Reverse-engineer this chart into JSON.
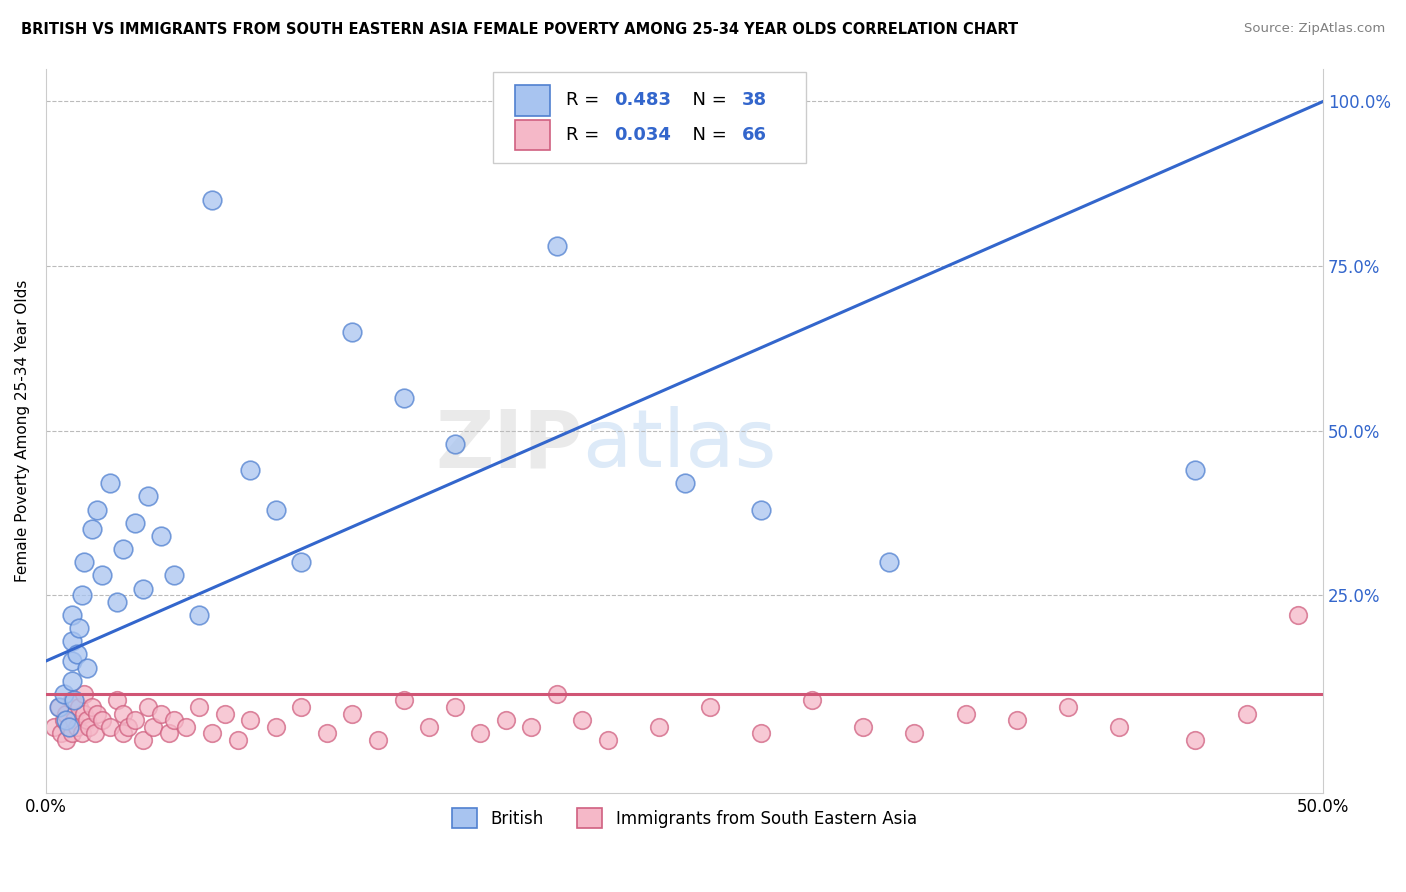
{
  "title": "BRITISH VS IMMIGRANTS FROM SOUTH EASTERN ASIA FEMALE POVERTY AMONG 25-34 YEAR OLDS CORRELATION CHART",
  "source": "Source: ZipAtlas.com",
  "ylabel": "Female Poverty Among 25-34 Year Olds",
  "xlim": [
    0.0,
    0.5
  ],
  "ylim": [
    -0.05,
    1.05
  ],
  "british_R": 0.483,
  "british_N": 38,
  "immigrant_R": 0.034,
  "immigrant_N": 66,
  "british_color": "#A8C4F0",
  "british_edge_color": "#5080D0",
  "british_line_color": "#3366CC",
  "immigrant_color": "#F5B8C8",
  "immigrant_edge_color": "#D06080",
  "immigrant_line_color": "#D05575",
  "background_color": "#ffffff",
  "rval_color": "#3366CC",
  "nval_color": "#3366CC",
  "british_x": [
    0.005,
    0.007,
    0.008,
    0.009,
    0.01,
    0.01,
    0.01,
    0.01,
    0.011,
    0.012,
    0.013,
    0.014,
    0.015,
    0.016,
    0.018,
    0.02,
    0.022,
    0.025,
    0.028,
    0.03,
    0.035,
    0.038,
    0.04,
    0.045,
    0.05,
    0.06,
    0.065,
    0.08,
    0.09,
    0.1,
    0.12,
    0.14,
    0.16,
    0.2,
    0.25,
    0.28,
    0.33,
    0.45
  ],
  "british_y": [
    0.08,
    0.1,
    0.06,
    0.05,
    0.12,
    0.15,
    0.18,
    0.22,
    0.09,
    0.16,
    0.2,
    0.25,
    0.3,
    0.14,
    0.35,
    0.38,
    0.28,
    0.42,
    0.24,
    0.32,
    0.36,
    0.26,
    0.4,
    0.34,
    0.28,
    0.22,
    0.85,
    0.44,
    0.38,
    0.3,
    0.65,
    0.55,
    0.48,
    0.78,
    0.42,
    0.38,
    0.3,
    0.44
  ],
  "immigrant_x": [
    0.003,
    0.005,
    0.006,
    0.007,
    0.008,
    0.008,
    0.009,
    0.01,
    0.01,
    0.011,
    0.012,
    0.013,
    0.014,
    0.015,
    0.015,
    0.016,
    0.017,
    0.018,
    0.019,
    0.02,
    0.022,
    0.025,
    0.028,
    0.03,
    0.03,
    0.032,
    0.035,
    0.038,
    0.04,
    0.042,
    0.045,
    0.048,
    0.05,
    0.055,
    0.06,
    0.065,
    0.07,
    0.075,
    0.08,
    0.09,
    0.1,
    0.11,
    0.12,
    0.13,
    0.14,
    0.15,
    0.16,
    0.17,
    0.18,
    0.19,
    0.2,
    0.21,
    0.22,
    0.24,
    0.26,
    0.28,
    0.3,
    0.32,
    0.34,
    0.36,
    0.38,
    0.4,
    0.42,
    0.45,
    0.47,
    0.49
  ],
  "immigrant_y": [
    0.05,
    0.08,
    0.04,
    0.06,
    0.03,
    0.07,
    0.05,
    0.04,
    0.09,
    0.06,
    0.05,
    0.08,
    0.04,
    0.07,
    0.1,
    0.06,
    0.05,
    0.08,
    0.04,
    0.07,
    0.06,
    0.05,
    0.09,
    0.04,
    0.07,
    0.05,
    0.06,
    0.03,
    0.08,
    0.05,
    0.07,
    0.04,
    0.06,
    0.05,
    0.08,
    0.04,
    0.07,
    0.03,
    0.06,
    0.05,
    0.08,
    0.04,
    0.07,
    0.03,
    0.09,
    0.05,
    0.08,
    0.04,
    0.06,
    0.05,
    0.1,
    0.06,
    0.03,
    0.05,
    0.08,
    0.04,
    0.09,
    0.05,
    0.04,
    0.07,
    0.06,
    0.08,
    0.05,
    0.03,
    0.07,
    0.22
  ]
}
